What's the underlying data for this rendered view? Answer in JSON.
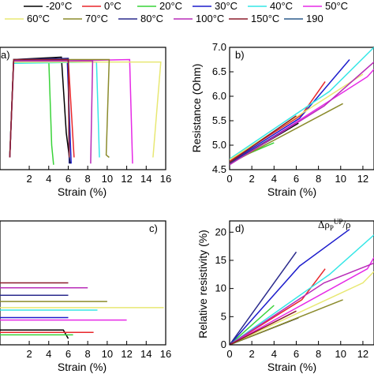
{
  "legend": [
    {
      "label": "-20°C",
      "color": "#000000"
    },
    {
      "label": "0°C",
      "color": "#e8262a"
    },
    {
      "label": "20°C",
      "color": "#39d339"
    },
    {
      "label": "30°C",
      "color": "#1c1ccc"
    },
    {
      "label": "40°C",
      "color": "#35e6e6"
    },
    {
      "label": "50°C",
      "color": "#e62ae6"
    },
    {
      "label": "60°C",
      "color": "#e8e873"
    },
    {
      "label": "70°C",
      "color": "#8b8b2c"
    },
    {
      "label": "80°C",
      "color": "#2a2a8c"
    },
    {
      "label": "100°C",
      "color": "#b82cb8"
    },
    {
      "label": "150°C",
      "color": "#8b1c2c"
    },
    {
      "label": "190",
      "color": "#2c5a8b"
    }
  ],
  "chart_data": [
    {
      "panel": "a)",
      "type": "line",
      "xlabel": "Strain (%)",
      "ylabel": "",
      "xlim": [
        -1,
        16
      ],
      "xticks": [
        2,
        4,
        6,
        8,
        10,
        12,
        14,
        16
      ],
      "ylim": [
        0,
        1
      ],
      "series": [
        {
          "legend": 0,
          "points": [
            [
              0,
              0.1
            ],
            [
              0.4,
              0.9
            ],
            [
              5.3,
              0.92
            ],
            [
              5.8,
              0.3
            ],
            [
              6.2,
              0.05
            ]
          ]
        },
        {
          "legend": 1,
          "points": [
            [
              0,
              0.1
            ],
            [
              0.4,
              0.88
            ],
            [
              6.0,
              0.9
            ],
            [
              6.6,
              0.1
            ]
          ]
        },
        {
          "legend": 2,
          "points": [
            [
              0,
              0.12
            ],
            [
              0.4,
              0.9
            ],
            [
              4.0,
              0.9
            ],
            [
              4.3,
              0.2
            ],
            [
              4.5,
              0.04
            ]
          ]
        },
        {
          "legend": 3,
          "points": [
            [
              0,
              0.1
            ],
            [
              0.4,
              0.89
            ],
            [
              5.9,
              0.9
            ],
            [
              6.3,
              0.05
            ]
          ]
        },
        {
          "legend": 4,
          "points": [
            [
              0,
              0.1
            ],
            [
              0.4,
              0.87
            ],
            [
              8.9,
              0.88
            ],
            [
              9.2,
              0.1
            ]
          ]
        },
        {
          "legend": 5,
          "points": [
            [
              0,
              0.1
            ],
            [
              0.4,
              0.88
            ],
            [
              12.3,
              0.9
            ],
            [
              12.6,
              0.05
            ]
          ]
        },
        {
          "legend": 6,
          "points": [
            [
              0,
              0.1
            ],
            [
              0.4,
              0.88
            ],
            [
              15.5,
              0.88
            ],
            [
              14.7,
              0.1
            ]
          ]
        },
        {
          "legend": 7,
          "points": [
            [
              0,
              0.1
            ],
            [
              0.4,
              0.9
            ],
            [
              10.2,
              0.9
            ],
            [
              9.9,
              0.12
            ],
            [
              10.2,
              0.1
            ]
          ]
        },
        {
          "legend": 8,
          "points": [
            [
              0,
              0.1
            ],
            [
              0.4,
              0.9
            ],
            [
              6.0,
              0.91
            ],
            [
              6.1,
              0.05
            ]
          ]
        },
        {
          "legend": 9,
          "points": [
            [
              0,
              0.1
            ],
            [
              0.4,
              0.89
            ],
            [
              8.5,
              0.89
            ],
            [
              8.3,
              0.05
            ]
          ]
        },
        {
          "legend": 10,
          "points": [
            [
              0,
              0.1
            ],
            [
              0.4,
              0.9
            ],
            [
              6.0,
              0.9
            ],
            [
              6.1,
              0.1
            ]
          ]
        }
      ]
    },
    {
      "panel": "b)",
      "type": "line",
      "xlabel": "Strain (%)",
      "ylabel": "Resistance (Ohm)",
      "xlim": [
        0,
        13
      ],
      "xticks": [
        0,
        2,
        4,
        6,
        8,
        10,
        12
      ],
      "ylim": [
        4.5,
        7.0
      ],
      "yticks": [
        4.5,
        5.0,
        5.5,
        6.0,
        6.5,
        7.0
      ],
      "series": [
        {
          "legend": 0,
          "points": [
            [
              0,
              4.62
            ],
            [
              6.2,
              5.45
            ]
          ]
        },
        {
          "legend": 1,
          "points": [
            [
              0,
              4.68
            ],
            [
              6.5,
              5.62
            ],
            [
              8.6,
              6.3
            ]
          ]
        },
        {
          "legend": 2,
          "points": [
            [
              0,
              4.66
            ],
            [
              4.0,
              5.05
            ]
          ]
        },
        {
          "legend": 3,
          "points": [
            [
              0,
              4.65
            ],
            [
              6.3,
              5.55
            ],
            [
              10.8,
              6.75
            ]
          ]
        },
        {
          "legend": 4,
          "points": [
            [
              0,
              4.72
            ],
            [
              9.0,
              6.1
            ],
            [
              13,
              7.0
            ]
          ]
        },
        {
          "legend": 5,
          "points": [
            [
              0,
              4.6
            ],
            [
              12.4,
              6.4
            ],
            [
              13,
              6.55
            ]
          ]
        },
        {
          "legend": 6,
          "points": [
            [
              0,
              4.7
            ],
            [
              12.0,
              6.45
            ]
          ]
        },
        {
          "legend": 7,
          "points": [
            [
              0,
              4.62
            ],
            [
              10.2,
              5.85
            ]
          ]
        },
        {
          "legend": 8,
          "points": [
            [
              0,
              4.63
            ],
            [
              6.0,
              5.45
            ]
          ]
        },
        {
          "legend": 9,
          "points": [
            [
              0,
              4.6
            ],
            [
              8.5,
              5.8
            ],
            [
              13,
              6.7
            ]
          ]
        },
        {
          "legend": 10,
          "points": [
            [
              0,
              4.65
            ],
            [
              6.0,
              5.6
            ]
          ]
        }
      ]
    },
    {
      "panel": "c)",
      "type": "line",
      "xlabel": "Strain (%)",
      "ylabel": "",
      "xlim": [
        -1,
        16
      ],
      "xticks": [
        2,
        4,
        6,
        8,
        10,
        12,
        14,
        16
      ],
      "ylim": [
        0,
        1
      ],
      "series": [
        {
          "legend": 0,
          "points": [
            [
              -1,
              0.12
            ],
            [
              5.5,
              0.12
            ],
            [
              6.0,
              0.05
            ]
          ]
        },
        {
          "legend": 1,
          "points": [
            [
              -1,
              0.1
            ],
            [
              8.6,
              0.1
            ]
          ]
        },
        {
          "legend": 2,
          "points": [
            [
              -1,
              0.08
            ],
            [
              6.5,
              0.08
            ]
          ]
        },
        {
          "legend": 3,
          "points": [
            [
              -1,
              0.22
            ],
            [
              6.0,
              0.22
            ]
          ]
        },
        {
          "legend": 4,
          "points": [
            [
              -1,
              0.28
            ],
            [
              9.0,
              0.28
            ]
          ]
        },
        {
          "legend": 5,
          "points": [
            [
              -1,
              0.2
            ],
            [
              12.0,
              0.2
            ]
          ]
        },
        {
          "legend": 6,
          "points": [
            [
              -1,
              0.3
            ],
            [
              15.8,
              0.3
            ]
          ]
        },
        {
          "legend": 7,
          "points": [
            [
              -1,
              0.35
            ],
            [
              10.0,
              0.35
            ]
          ]
        },
        {
          "legend": 8,
          "points": [
            [
              -1,
              0.4
            ],
            [
              6.0,
              0.4
            ]
          ]
        },
        {
          "legend": 9,
          "points": [
            [
              -1,
              0.46
            ],
            [
              8.0,
              0.46
            ]
          ]
        },
        {
          "legend": 10,
          "points": [
            [
              -1,
              0.5
            ],
            [
              6.0,
              0.5
            ]
          ]
        }
      ]
    },
    {
      "panel": "d)",
      "type": "line",
      "xlabel": "Strain (%)",
      "ylabel": "Relative resistivity (%)",
      "annotation": "Δρ_P^UP/ρ",
      "xlim": [
        0,
        13
      ],
      "xticks": [
        0,
        2,
        4,
        6,
        8,
        10,
        12
      ],
      "ylim": [
        0,
        22
      ],
      "yticks": [
        0,
        5,
        10,
        15,
        20
      ],
      "series": [
        {
          "legend": 0,
          "points": [
            [
              0,
              0
            ],
            [
              6.2,
              4.8
            ]
          ]
        },
        {
          "legend": 1,
          "points": [
            [
              0,
              0
            ],
            [
              6.5,
              8.0
            ],
            [
              8.6,
              13.5
            ]
          ]
        },
        {
          "legend": 2,
          "points": [
            [
              0,
              0
            ],
            [
              4.0,
              7.0
            ]
          ]
        },
        {
          "legend": 3,
          "points": [
            [
              0,
              0
            ],
            [
              6.3,
              14.0
            ],
            [
              10.8,
              20.5
            ]
          ]
        },
        {
          "legend": 4,
          "points": [
            [
              0,
              0
            ],
            [
              9.0,
              12.5
            ],
            [
              13,
              19.5
            ]
          ]
        },
        {
          "legend": 5,
          "points": [
            [
              0,
              0
            ],
            [
              12.4,
              13.5
            ],
            [
              13,
              15.5
            ]
          ]
        },
        {
          "legend": 6,
          "points": [
            [
              0,
              0
            ],
            [
              12.0,
              11.0
            ],
            [
              13,
              13.0
            ]
          ]
        },
        {
          "legend": 7,
          "points": [
            [
              0,
              0
            ],
            [
              10.2,
              8.0
            ]
          ]
        },
        {
          "legend": 8,
          "points": [
            [
              0,
              0
            ],
            [
              6.0,
              16.5
            ]
          ]
        },
        {
          "legend": 9,
          "points": [
            [
              0,
              0
            ],
            [
              8.5,
              11.0
            ],
            [
              13,
              14.5
            ]
          ]
        },
        {
          "legend": 10,
          "points": [
            [
              0,
              0
            ],
            [
              6.0,
              6.0
            ]
          ]
        }
      ]
    }
  ]
}
